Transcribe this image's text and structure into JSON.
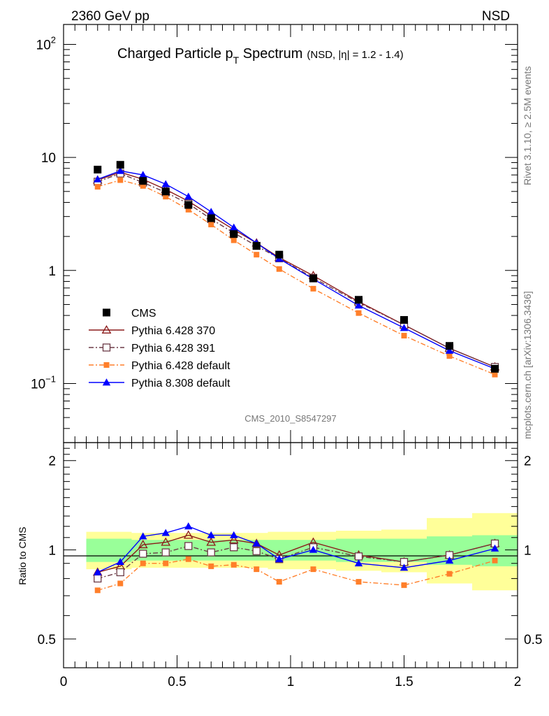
{
  "header": {
    "left_label": "2360 GeV pp",
    "right_label": "NSD"
  },
  "plot_title": {
    "main_prefix": "Charged Particle p",
    "main_sub": "T",
    "main_suffix": " Spectrum",
    "detail": "(NSD, |η| = 1.2 - 1.4)"
  },
  "side_labels": {
    "rivet": "Rivet 3.1.10, ≥ 2.5M events",
    "mcplots": "mcplots.cern.ch [arXiv:1306.3436]"
  },
  "analysis_id": "CMS_2010_S8547297",
  "top_axis": {
    "ticks": [
      {
        "value": 100,
        "base": "10",
        "exp": "2"
      },
      {
        "value": 10,
        "base": "10",
        "exp": ""
      },
      {
        "value": 1,
        "base": "1",
        "exp": ""
      },
      {
        "value": 0.1,
        "base": "10",
        "exp": "−1"
      }
    ]
  },
  "ratio_axis": {
    "label": "Ratio to CMS",
    "ticks": [
      "2",
      "1",
      "0.5"
    ]
  },
  "x_axis": {
    "ticks": [
      "0",
      "0.5",
      "1",
      "1.5",
      "2"
    ]
  },
  "legend": [
    {
      "label": "CMS",
      "color": "#000000",
      "marker": "square-filled",
      "dash": ""
    },
    {
      "label": "Pythia 6.428 370",
      "color": "#8b1a1a",
      "marker": "triangle-open",
      "dash": ""
    },
    {
      "label": "Pythia 6.428 391",
      "color": "#6b3a46",
      "marker": "square-open",
      "dash": "7,3,2,3"
    },
    {
      "label": "Pythia 6.428 default",
      "color": "#ff7f2a",
      "marker": "square-filled",
      "dash": "7,3,2,3"
    },
    {
      "label": "Pythia 8.308 default",
      "color": "#0000ff",
      "marker": "triangle-filled",
      "dash": ""
    }
  ],
  "chart_data": [
    {
      "type": "scatter",
      "panel": "main",
      "title": "Charged Particle pT Spectrum (NSD, |η| = 1.2 - 1.4)",
      "yscale": "log",
      "xlim": [
        0,
        2
      ],
      "ylim": [
        0.03,
        150
      ],
      "x": [
        0.15,
        0.25,
        0.35,
        0.45,
        0.55,
        0.65,
        0.75,
        0.85,
        0.95,
        1.1,
        1.3,
        1.5,
        1.7,
        1.9
      ],
      "series": [
        {
          "name": "CMS",
          "color": "#000000",
          "values": [
            7.8,
            8.6,
            6.2,
            5.0,
            3.8,
            2.9,
            2.1,
            1.65,
            1.38,
            0.85,
            0.55,
            0.365,
            0.215,
            0.135
          ]
        },
        {
          "name": "Pythia 6.428 370",
          "color": "#8b1a1a",
          "values": [
            6.3,
            7.4,
            6.4,
            5.2,
            4.1,
            3.05,
            2.3,
            1.75,
            1.3,
            0.9,
            0.53,
            0.33,
            0.205,
            0.14
          ]
        },
        {
          "name": "Pythia 6.428 391",
          "color": "#6b3a46",
          "values": [
            6.1,
            7.2,
            6.0,
            4.9,
            3.9,
            2.85,
            2.15,
            1.65,
            1.28,
            0.86,
            0.52,
            0.33,
            0.205,
            0.14
          ]
        },
        {
          "name": "Pythia 6.428 default",
          "color": "#ff7f2a",
          "values": [
            5.5,
            6.3,
            5.6,
            4.5,
            3.45,
            2.55,
            1.85,
            1.38,
            1.03,
            0.69,
            0.42,
            0.265,
            0.175,
            0.12
          ]
        },
        {
          "name": "Pythia 8.308 default",
          "color": "#0000ff",
          "values": [
            6.4,
            7.6,
            7.0,
            5.8,
            4.5,
            3.3,
            2.4,
            1.75,
            1.27,
            0.84,
            0.49,
            0.31,
            0.195,
            0.135
          ]
        }
      ]
    },
    {
      "type": "line",
      "panel": "ratio",
      "ylabel": "Ratio to CMS",
      "yscale": "log",
      "xlim": [
        0,
        2
      ],
      "ylim": [
        0.4,
        2.3
      ],
      "x": [
        0.15,
        0.25,
        0.35,
        0.45,
        0.55,
        0.65,
        0.75,
        0.85,
        0.95,
        1.1,
        1.3,
        1.5,
        1.7,
        1.9
      ],
      "bands": {
        "edges": [
          0.1,
          0.2,
          0.3,
          0.4,
          0.5,
          0.6,
          0.7,
          0.8,
          0.9,
          1.0,
          1.2,
          1.4,
          1.6,
          1.8,
          2.0
        ],
        "inner": [
          [
            0.91,
            1.09
          ],
          [
            0.91,
            1.09
          ],
          [
            0.92,
            1.08
          ],
          [
            0.92,
            1.08
          ],
          [
            0.92,
            1.08
          ],
          [
            0.92,
            1.08
          ],
          [
            0.92,
            1.08
          ],
          [
            0.92,
            1.08
          ],
          [
            0.92,
            1.08
          ],
          [
            0.92,
            1.08
          ],
          [
            0.91,
            1.09
          ],
          [
            0.91,
            1.09
          ],
          [
            0.89,
            1.11
          ],
          [
            0.88,
            1.12
          ]
        ],
        "outer": [
          [
            0.86,
            1.15
          ],
          [
            0.86,
            1.15
          ],
          [
            0.87,
            1.14
          ],
          [
            0.87,
            1.14
          ],
          [
            0.87,
            1.14
          ],
          [
            0.87,
            1.14
          ],
          [
            0.87,
            1.14
          ],
          [
            0.87,
            1.14
          ],
          [
            0.86,
            1.15
          ],
          [
            0.86,
            1.15
          ],
          [
            0.85,
            1.16
          ],
          [
            0.84,
            1.17
          ],
          [
            0.77,
            1.28
          ],
          [
            0.73,
            1.33
          ]
        ]
      },
      "series": [
        {
          "name": "Pythia 6.428 370",
          "color": "#8b1a1a",
          "values": [
            0.84,
            0.88,
            1.04,
            1.06,
            1.12,
            1.06,
            1.08,
            1.05,
            0.96,
            1.06,
            0.96,
            0.91,
            0.96,
            1.05
          ]
        },
        {
          "name": "Pythia 6.428 391",
          "color": "#6b3a46",
          "values": [
            0.8,
            0.84,
            0.97,
            0.98,
            1.03,
            0.98,
            1.02,
            0.99,
            0.93,
            1.02,
            0.95,
            0.91,
            0.96,
            1.05
          ]
        },
        {
          "name": "Pythia 6.428 default",
          "color": "#ff7f2a",
          "values": [
            0.73,
            0.77,
            0.9,
            0.9,
            0.93,
            0.88,
            0.89,
            0.86,
            0.78,
            0.86,
            0.78,
            0.76,
            0.83,
            0.92
          ]
        },
        {
          "name": "Pythia 8.308 default",
          "color": "#0000ff",
          "values": [
            0.84,
            0.91,
            1.11,
            1.14,
            1.2,
            1.12,
            1.12,
            1.05,
            0.93,
            1.0,
            0.9,
            0.87,
            0.92,
            1.01
          ]
        }
      ]
    }
  ]
}
